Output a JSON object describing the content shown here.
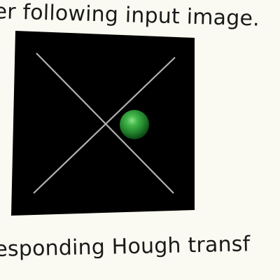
{
  "caption_top": "er following input image.",
  "caption_bottom": "esponding Hough transf",
  "colors": {
    "page_background": "#fafaf2",
    "image_background": "#000000",
    "line_color": "#b0b0b0",
    "ball_color": "#2e9a38"
  },
  "icons": {
    "ball": "green-sphere"
  }
}
